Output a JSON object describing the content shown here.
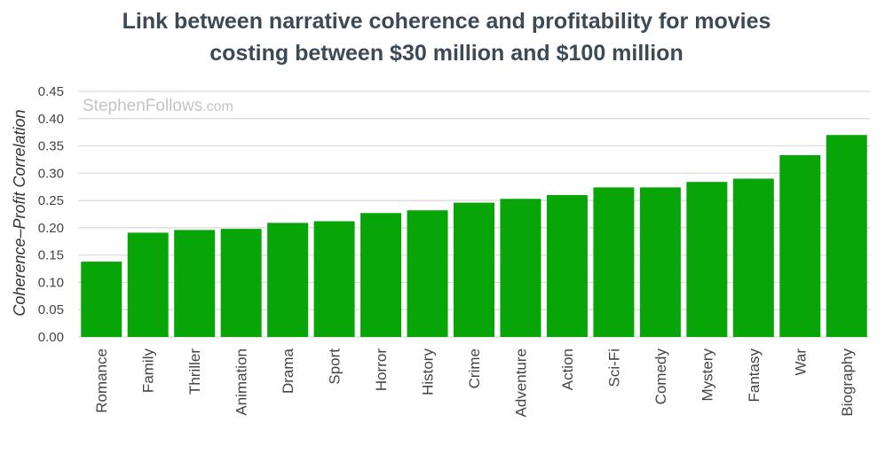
{
  "chart_data": {
    "type": "bar",
    "title_lines": [
      "Link between narrative coherence and profitability for movies",
      "costing between $30 million and $100 million"
    ],
    "xlabel": "",
    "ylabel": "Coherence–Profit Correlation",
    "ylim": [
      0,
      0.45
    ],
    "yticks": [
      "0.00",
      "0.05",
      "0.10",
      "0.15",
      "0.20",
      "0.25",
      "0.30",
      "0.35",
      "0.40",
      "0.45"
    ],
    "categories": [
      "Romance",
      "Family",
      "Thriller",
      "Animation",
      "Drama",
      "Sport",
      "Horror",
      "History",
      "Crime",
      "Adventure",
      "Action",
      "Sci-Fi",
      "Comedy",
      "Mystery",
      "Fantasy",
      "War",
      "Biography"
    ],
    "values": [
      0.138,
      0.191,
      0.196,
      0.198,
      0.209,
      0.212,
      0.227,
      0.232,
      0.246,
      0.253,
      0.26,
      0.274,
      0.274,
      0.284,
      0.29,
      0.333,
      0.37
    ],
    "grid": true,
    "bar_color": "#08a508",
    "grid_color": "#d9d9d9"
  },
  "watermark": {
    "main": "StephenFollows",
    "suffix": ".com"
  }
}
